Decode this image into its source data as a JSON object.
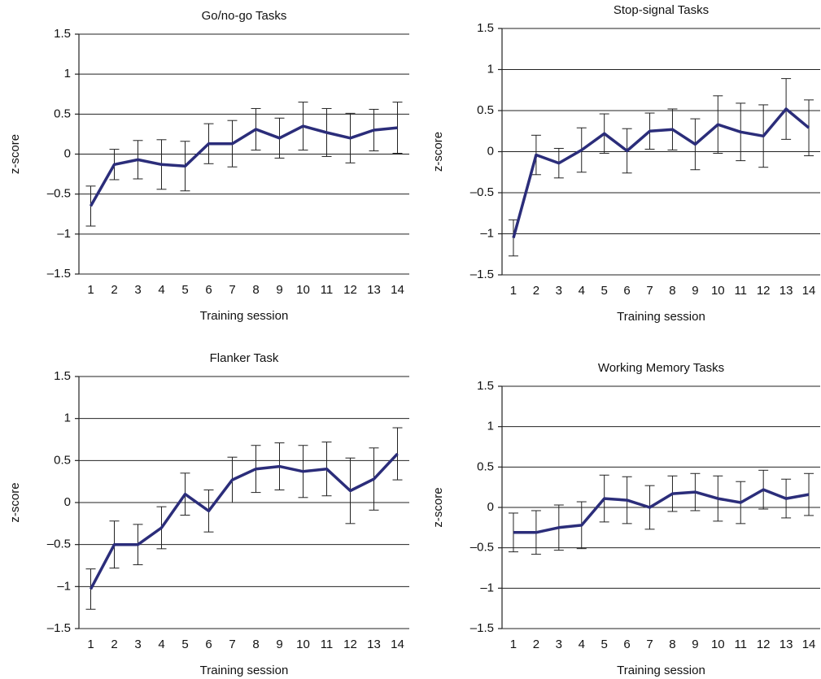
{
  "chart_data": [
    {
      "type": "line",
      "title": "Go/no-go Tasks",
      "xlabel": "Training session",
      "ylabel": "z-score",
      "categories": [
        1,
        2,
        3,
        4,
        5,
        6,
        7,
        8,
        9,
        10,
        11,
        12,
        13,
        14
      ],
      "series": [
        {
          "color": "#2b2d7a",
          "values": [
            -0.65,
            -0.13,
            -0.07,
            -0.13,
            -0.15,
            0.13,
            0.13,
            0.31,
            0.2,
            0.35,
            0.27,
            0.2,
            0.3,
            0.33
          ],
          "errors": [
            0.25,
            0.19,
            0.24,
            0.31,
            0.31,
            0.25,
            0.29,
            0.26,
            0.25,
            0.3,
            0.3,
            0.31,
            0.26,
            0.32
          ]
        }
      ],
      "ylim": [
        -1.5,
        1.5
      ],
      "yticks": [
        {
          "value": -1.5,
          "label": "–1.5"
        },
        {
          "value": -1,
          "label": "–1"
        },
        {
          "value": -0.5,
          "label": "–0.5"
        },
        0,
        0.5,
        1,
        1.5
      ],
      "grid": true
    },
    {
      "type": "line",
      "title": "Stop-signal Tasks",
      "xlabel": "Training session",
      "ylabel": "z-score",
      "categories": [
        1,
        2,
        3,
        4,
        5,
        6,
        7,
        8,
        9,
        10,
        11,
        12,
        13,
        14
      ],
      "series": [
        {
          "color": "#2b2d7a",
          "values": [
            -1.05,
            -0.04,
            -0.14,
            0.02,
            0.22,
            0.01,
            0.25,
            0.27,
            0.09,
            0.33,
            0.24,
            0.19,
            0.52,
            0.29
          ],
          "errors": [
            0.22,
            0.24,
            0.18,
            0.27,
            0.24,
            0.27,
            0.22,
            0.25,
            0.31,
            0.35,
            0.35,
            0.38,
            0.37,
            0.34
          ]
        }
      ],
      "ylim": [
        -1.5,
        1.5
      ],
      "yticks": [
        {
          "value": -1.5,
          "label": "–1.5"
        },
        {
          "value": -1,
          "label": "–1"
        },
        {
          "value": -0.5,
          "label": "–0.5"
        },
        0,
        0.5,
        1,
        1.5
      ],
      "grid": true
    },
    {
      "type": "line",
      "title": "Flanker Task",
      "xlabel": "Training session",
      "ylabel": "z-score",
      "categories": [
        1,
        2,
        3,
        4,
        5,
        6,
        7,
        8,
        9,
        10,
        11,
        12,
        13,
        14
      ],
      "series": [
        {
          "color": "#2b2d7a",
          "values": [
            -1.03,
            -0.5,
            -0.5,
            -0.3,
            0.1,
            -0.1,
            0.27,
            0.4,
            0.43,
            0.37,
            0.4,
            0.14,
            0.28,
            0.58
          ],
          "errors": [
            0.24,
            0.28,
            0.24,
            0.25,
            0.25,
            0.25,
            0.27,
            0.28,
            0.28,
            0.31,
            0.32,
            0.39,
            0.37,
            0.31
          ]
        }
      ],
      "ylim": [
        -1.5,
        1.5
      ],
      "yticks": [
        {
          "value": -1.5,
          "label": "–1.5"
        },
        {
          "value": -1,
          "label": "–1"
        },
        {
          "value": -0.5,
          "label": "–0.5"
        },
        0,
        0.5,
        1,
        1.5
      ],
      "grid": true
    },
    {
      "type": "line",
      "title": "Working Memory Tasks",
      "xlabel": "Training session",
      "ylabel": "z-score",
      "categories": [
        1,
        2,
        3,
        4,
        5,
        6,
        7,
        8,
        9,
        10,
        11,
        12,
        13,
        14
      ],
      "series": [
        {
          "color": "#2b2d7a",
          "values": [
            -0.31,
            -0.31,
            -0.25,
            -0.22,
            0.11,
            0.09,
            0,
            0.17,
            0.19,
            0.11,
            0.06,
            0.22,
            0.11,
            0.16
          ],
          "errors": [
            0.24,
            0.27,
            0.28,
            0.29,
            0.29,
            0.29,
            0.27,
            0.22,
            0.23,
            0.28,
            0.26,
            0.24,
            0.24,
            0.26
          ]
        }
      ],
      "ylim": [
        -1.5,
        1.5
      ],
      "yticks": [
        {
          "value": -1.5,
          "label": "–1.5"
        },
        {
          "value": -1,
          "label": "–1"
        },
        {
          "value": -0.5,
          "label": "–0.5"
        },
        0,
        0.5,
        1,
        1.5
      ],
      "grid": true
    }
  ]
}
